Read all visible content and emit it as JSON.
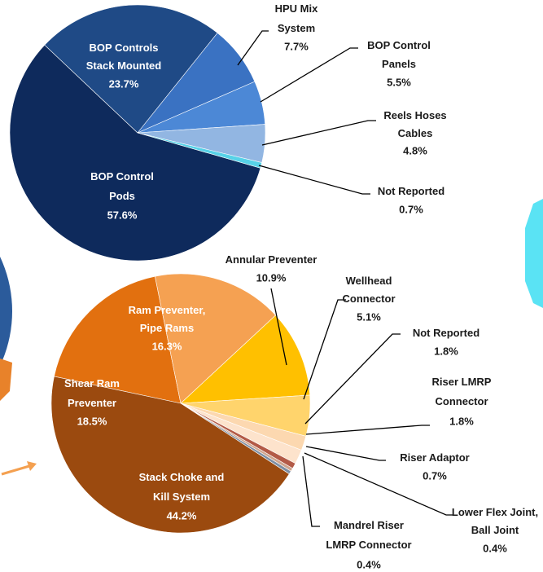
{
  "chart_data": [
    {
      "type": "pie",
      "categories": [
        "BOP Control Pods",
        "BOP Controls Stack Mounted",
        "HPU Mix System",
        "BOP Control Panels",
        "Reels Hoses Cables",
        "Not Reported"
      ],
      "values": [
        57.6,
        23.7,
        7.7,
        5.5,
        4.8,
        0.7
      ],
      "value_labels": [
        "57.6%",
        "23.7%",
        "7.7%",
        "5.5%",
        "4.8%",
        "0.7%"
      ],
      "colors": [
        "#0e2a5c",
        "#1f4a86",
        "#3a72c2",
        "#4c88d6",
        "#92b6e2",
        "#57d2e8"
      ]
    },
    {
      "type": "pie",
      "categories": [
        "Shear Ram Preventer",
        "Ram Preventer, Pipe Rams",
        "Annular Preventer",
        "Wellhead Connector",
        "Not Reported",
        "Riser LMRP Connector",
        "Riser Adaptor",
        "Lower Flex Joint, Ball Joint",
        "Mandrel Riser LMRP Connector",
        "Stack Choke and Kill System"
      ],
      "values": [
        18.5,
        16.3,
        10.9,
        5.1,
        1.8,
        1.8,
        0.7,
        0.4,
        0.4,
        44.2
      ],
      "value_labels": [
        "18.5%",
        "16.3%",
        "10.9%",
        "5.1%",
        "1.8%",
        "1.8%",
        "0.7%",
        "0.4%",
        "0.4%",
        "44.2%"
      ],
      "colors": [
        "#e2700f",
        "#f5a152",
        "#ffc000",
        "#ffd46c",
        "#fcd8b0",
        "#fde3cc",
        "#b35a46",
        "#cfa58e",
        "#7d8ea2",
        "#9b4a0f"
      ]
    }
  ]
}
